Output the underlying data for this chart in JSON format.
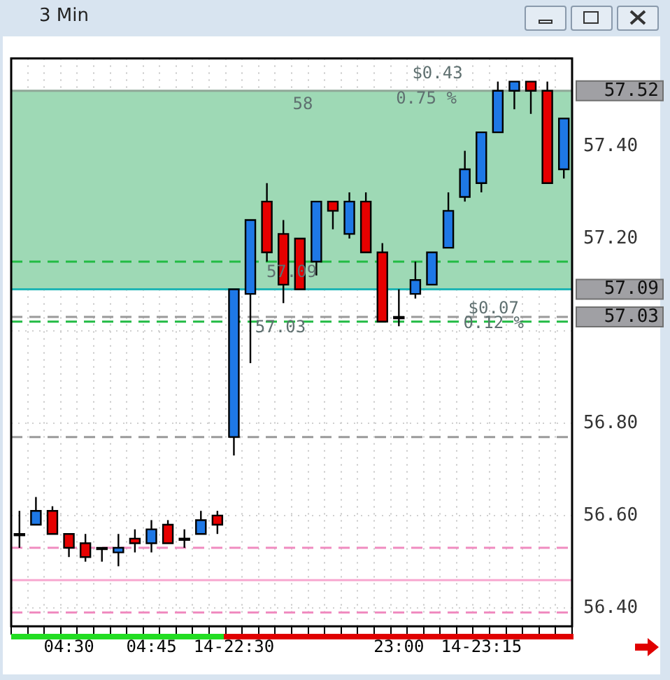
{
  "chart_data": {
    "type": "candlestick",
    "title": "3 Min",
    "categories": [
      null,
      null,
      null,
      "04:30",
      null,
      null,
      null,
      null,
      "04:45",
      null,
      null,
      null,
      null,
      "14-22:30",
      null,
      null,
      null,
      null,
      null,
      null,
      null,
      null,
      null,
      "23:00",
      null,
      null,
      null,
      null,
      "14-23:15",
      null,
      null,
      null,
      null,
      null
    ],
    "ohlc": [
      [
        56.56,
        56.61,
        56.53,
        56.56
      ],
      [
        56.58,
        56.64,
        56.58,
        56.61
      ],
      [
        56.61,
        56.62,
        56.56,
        56.56
      ],
      [
        56.56,
        56.56,
        56.51,
        56.53
      ],
      [
        56.54,
        56.56,
        56.5,
        56.51
      ],
      [
        56.53,
        56.53,
        56.5,
        56.53
      ],
      [
        56.52,
        56.56,
        56.49,
        56.53
      ],
      [
        56.55,
        56.57,
        56.52,
        56.54
      ],
      [
        56.54,
        56.59,
        56.52,
        56.57
      ],
      [
        56.58,
        56.59,
        56.54,
        56.54
      ],
      [
        56.55,
        56.57,
        56.53,
        56.55
      ],
      [
        56.56,
        56.61,
        56.56,
        56.59
      ],
      [
        56.6,
        56.61,
        56.56,
        56.58
      ],
      [
        56.77,
        57.09,
        56.73,
        57.09
      ],
      [
        57.08,
        57.24,
        56.93,
        57.24
      ],
      [
        57.28,
        57.32,
        57.15,
        57.17
      ],
      [
        57.21,
        57.24,
        57.06,
        57.1
      ],
      [
        57.2,
        57.2,
        57.09,
        57.09
      ],
      [
        57.15,
        57.28,
        57.12,
        57.28
      ],
      [
        57.28,
        57.28,
        57.22,
        57.26
      ],
      [
        57.21,
        57.3,
        57.2,
        57.28
      ],
      [
        57.28,
        57.3,
        57.17,
        57.17
      ],
      [
        57.17,
        57.19,
        57.02,
        57.02
      ],
      [
        57.03,
        57.09,
        57.01,
        57.03
      ],
      [
        57.08,
        57.15,
        57.07,
        57.11
      ],
      [
        57.1,
        57.17,
        57.1,
        57.17
      ],
      [
        57.18,
        57.3,
        57.18,
        57.26
      ],
      [
        57.29,
        57.39,
        57.28,
        57.35
      ],
      [
        57.32,
        57.43,
        57.3,
        57.43
      ],
      [
        57.43,
        57.54,
        57.43,
        57.52
      ],
      [
        57.52,
        57.54,
        57.48,
        57.54
      ],
      [
        57.54,
        57.54,
        57.47,
        57.52
      ],
      [
        57.52,
        57.54,
        57.32,
        57.32
      ],
      [
        57.35,
        57.46,
        57.33,
        57.46
      ]
    ],
    "colors": [
      "#000000",
      "#1e78e6",
      "#e60000",
      "#e60000",
      "#e60000",
      "#000000",
      "#1e78e6",
      "#e60000",
      "#1e78e6",
      "#e60000",
      "#000000",
      "#1e78e6",
      "#e60000",
      "#1e78e6",
      "#1e78e6",
      "#e60000",
      "#e60000",
      "#e60000",
      "#1e78e6",
      "#e60000",
      "#1e78e6",
      "#e60000",
      "#e60000",
      "#000000",
      "#1e78e6",
      "#1e78e6",
      "#1e78e6",
      "#1e78e6",
      "#1e78e6",
      "#1e78e6",
      "#1e78e6",
      "#e60000",
      "#e60000",
      "#1e78e6"
    ],
    "ylim": [
      56.36,
      57.59
    ],
    "yticks": [
      {
        "value": 56.4,
        "label": "56.40"
      },
      {
        "value": 56.6,
        "label": "56.60"
      },
      {
        "value": 56.8,
        "label": "56.80"
      },
      {
        "value": 57.0,
        "label": null
      },
      {
        "value": 57.2,
        "label": "57.20"
      },
      {
        "value": 57.4,
        "label": "57.40"
      }
    ],
    "grid": true,
    "legend": false,
    "bands": [
      {
        "axis": "y",
        "from": 57.09,
        "to": 57.52,
        "color": "#9ed9b5"
      }
    ],
    "ref_lines": [
      {
        "axis": "y",
        "value": 57.52,
        "label": "57.52",
        "color": "#8fa898",
        "line_style": "solid"
      },
      {
        "axis": "y",
        "value": 57.09,
        "label": "57.09",
        "color": "#1fb5b5",
        "line_style": "solid"
      },
      {
        "axis": "y",
        "value": 57.03,
        "label": "57.03",
        "color": "#9a9a9a",
        "line_style": "dashed"
      },
      {
        "axis": "y",
        "value": 57.15,
        "color": "#22bb44",
        "line_style": "dashed"
      },
      {
        "axis": "y",
        "value": 57.02,
        "color": "#22bb44",
        "line_style": "dashed"
      },
      {
        "axis": "y",
        "value": 56.77,
        "color": "#9a9a9a",
        "line_style": "dashed"
      },
      {
        "axis": "y",
        "value": 56.53,
        "color": "#f08cc0",
        "line_style": "dashed"
      },
      {
        "axis": "y",
        "value": 56.46,
        "color": "#f8a8d0",
        "line_style": "solid"
      },
      {
        "axis": "y",
        "value": 56.39,
        "color": "#f08cc0",
        "line_style": "dashed"
      }
    ],
    "annotations": [
      {
        "text": "58",
        "y": 57.52
      },
      {
        "text": "$0.43",
        "y": 57.52
      },
      {
        "text": "0.75 %",
        "y": 57.52
      },
      {
        "text": "57.09",
        "y": 57.09
      },
      {
        "text": "57.03",
        "y": 57.03
      },
      {
        "text": "$0.07",
        "y": 57.09
      },
      {
        "text": "0.12 %",
        "y": 57.03
      }
    ]
  }
}
